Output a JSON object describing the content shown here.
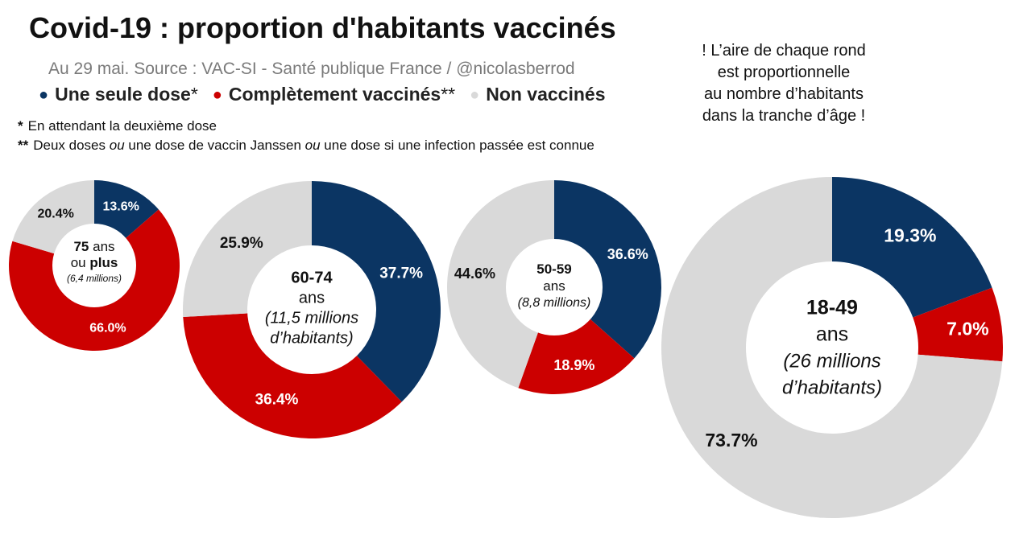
{
  "header": {
    "title": "Covid-19 : proportion d'habitants vaccinés",
    "subtitle": "Au 29 mai. Source : VAC-SI - Santé publique France / @nicolasberrod"
  },
  "legend": [
    {
      "label": "Une seule dose",
      "suffix": "*",
      "color": "#0b3563"
    },
    {
      "label": "Complètement vaccinés",
      "suffix": "**",
      "color": "#cc0000"
    },
    {
      "label": "Non vaccinés",
      "suffix": "",
      "color": "#d9d9d9"
    }
  ],
  "notes": {
    "note1_marker": "*",
    "note1_text": "En attendant la deuxième dose",
    "note2_marker": "**",
    "note2_a": "Deux doses ",
    "note2_b": "ou",
    "note2_c": " une dose de vaccin Janssen ",
    "note2_d": "ou",
    "note2_e": " une dose si une infection passée est connue"
  },
  "aside": {
    "line1": "! L’aire de chaque rond",
    "line2": "est proportionnelle",
    "line3": "au nombre d’habitants",
    "line4": "dans la tranche d’âge !"
  },
  "chart_data": [
    {
      "type": "pie",
      "group": "75 ans ou plus",
      "center_lines": [
        {
          "parts": [
            {
              "text": "75",
              "weight": "bold"
            },
            {
              "text": " ans",
              "weight": "normal"
            }
          ]
        },
        {
          "parts": [
            {
              "text": "ou ",
              "weight": "normal"
            },
            {
              "text": "plus",
              "weight": "bold"
            }
          ]
        },
        {
          "parts": [
            {
              "text": "(6,4 millions)",
              "style": "italic"
            }
          ]
        }
      ],
      "population_millions": 6.4,
      "slices": [
        {
          "name": "Une seule dose",
          "value": 13.6,
          "label": "13.6%"
        },
        {
          "name": "Complètement vaccinés",
          "value": 66.0,
          "label": "66.0%"
        },
        {
          "name": "Non vaccinés",
          "value": 20.4,
          "label": "20.4%"
        }
      ]
    },
    {
      "type": "pie",
      "group": "60-74 ans",
      "center_lines": [
        {
          "parts": [
            {
              "text": "60-74",
              "weight": "bold"
            }
          ]
        },
        {
          "parts": [
            {
              "text": "ans",
              "weight": "normal"
            }
          ]
        },
        {
          "parts": [
            {
              "text": "(11,5 millions",
              "style": "italic"
            }
          ]
        },
        {
          "parts": [
            {
              "text": "d’habitants)",
              "style": "italic"
            }
          ]
        }
      ],
      "population_millions": 11.5,
      "slices": [
        {
          "name": "Une seule dose",
          "value": 37.7,
          "label": "37.7%"
        },
        {
          "name": "Complètement vaccinés",
          "value": 36.4,
          "label": "36.4%"
        },
        {
          "name": "Non vaccinés",
          "value": 25.9,
          "label": "25.9%"
        }
      ]
    },
    {
      "type": "pie",
      "group": "50-59 ans",
      "center_lines": [
        {
          "parts": [
            {
              "text": "50-59",
              "weight": "bold"
            }
          ]
        },
        {
          "parts": [
            {
              "text": "ans",
              "weight": "normal"
            }
          ]
        },
        {
          "parts": [
            {
              "text": "(8,8 millions)",
              "style": "italic"
            }
          ]
        }
      ],
      "population_millions": 8.8,
      "slices": [
        {
          "name": "Une seule dose",
          "value": 36.6,
          "label": "36.6%"
        },
        {
          "name": "Complètement vaccinés",
          "value": 18.9,
          "label": "18.9%"
        },
        {
          "name": "Non vaccinés",
          "value": 44.6,
          "label": "44.6%"
        }
      ]
    },
    {
      "type": "pie",
      "group": "18-49 ans",
      "center_lines": [
        {
          "parts": [
            {
              "text": "18-49",
              "weight": "bold"
            }
          ]
        },
        {
          "parts": [
            {
              "text": "ans",
              "weight": "normal"
            }
          ]
        },
        {
          "parts": [
            {
              "text": "(26 millions",
              "style": "italic"
            }
          ]
        },
        {
          "parts": [
            {
              "text": "d’habitants)",
              "style": "italic"
            }
          ]
        }
      ],
      "population_millions": 26,
      "slices": [
        {
          "name": "Une seule dose",
          "value": 19.3,
          "label": "19.3%"
        },
        {
          "name": "Complètement vaccinés",
          "value": 7.0,
          "label": "7.0%"
        },
        {
          "name": "Non vaccinés",
          "value": 73.7,
          "label": "73.7%"
        }
      ]
    }
  ]
}
